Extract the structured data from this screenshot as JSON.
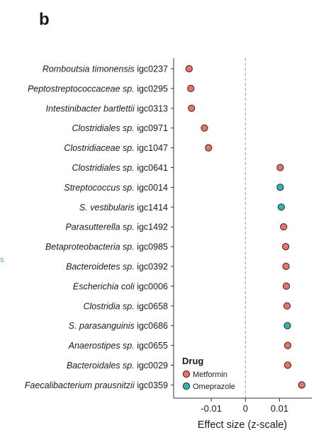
{
  "panel_label": "b",
  "side_mark": "s",
  "colors": {
    "Metformin": "#e8736a",
    "Omeprazole": "#2bb8b4"
  },
  "chart_data": {
    "type": "scatter",
    "title": "",
    "xlabel": "Effect size (z-scale)",
    "ylabel": "",
    "xlim": [
      -0.02,
      0.018
    ],
    "xticks": [
      -0.01,
      0,
      0.01
    ],
    "xtick_labels": [
      "-0.01",
      "0",
      "0.01"
    ],
    "reference_line": 0,
    "legend": {
      "title": "Drug",
      "position": "bottom-right",
      "entries": [
        "Metformin",
        "Omeprazole"
      ]
    },
    "points": [
      {
        "italic": "Romboutsia timonensis",
        "suffix": " igc0237",
        "x": -0.0165,
        "drug": "Metformin"
      },
      {
        "italic": "Peptostreptococcaceae sp.",
        "suffix": " igc0295",
        "x": -0.016,
        "drug": "Metformin"
      },
      {
        "italic": "Intestinibacter bartlettii",
        "suffix": " igc0313",
        "x": -0.0158,
        "drug": "Metformin"
      },
      {
        "italic": "Clostridiales sp.",
        "suffix": " igc0971",
        "x": -0.012,
        "drug": "Metformin"
      },
      {
        "italic": "Clostridiaceae sp.",
        "suffix": " igc1047",
        "x": -0.0108,
        "drug": "Metformin"
      },
      {
        "italic": "Clostridiales sp.",
        "suffix": " igc0641",
        "x": 0.0102,
        "drug": "Metformin"
      },
      {
        "italic": "Streptococcus sp.",
        "suffix": " igc0014",
        "x": 0.0102,
        "drug": "Omeprazole"
      },
      {
        "italic": "S. vestibularis",
        "suffix": " igc1414",
        "x": 0.0105,
        "drug": "Omeprazole"
      },
      {
        "italic": "Parasutterella sp.",
        "suffix": " igc1492",
        "x": 0.0112,
        "drug": "Metformin"
      },
      {
        "italic": "Betaproteobacteria sp.",
        "suffix": " igc0985",
        "x": 0.0118,
        "drug": "Metformin"
      },
      {
        "italic": "Bacteroidetes sp.",
        "suffix": " igc0392",
        "x": 0.0119,
        "drug": "Metformin"
      },
      {
        "italic": "Escherichia coli",
        "suffix": " igc0006",
        "x": 0.012,
        "drug": "Metformin"
      },
      {
        "italic": "Clostridia sp.",
        "suffix": " igc0658",
        "x": 0.0122,
        "drug": "Metformin"
      },
      {
        "italic": "S. parasanguinis",
        "suffix": " igc0686",
        "x": 0.0123,
        "drug": "Omeprazole"
      },
      {
        "italic": "Anaerostipes sp.",
        "suffix": " igc0655",
        "x": 0.0124,
        "drug": "Metformin"
      },
      {
        "italic": "Bacteroidales sp.",
        "suffix": " igc0029",
        "x": 0.0124,
        "drug": "Metformin"
      },
      {
        "italic": "Faecalibacterium prausnitzii",
        "suffix": " igc0359",
        "x": 0.0165,
        "drug": "Metformin"
      }
    ]
  }
}
